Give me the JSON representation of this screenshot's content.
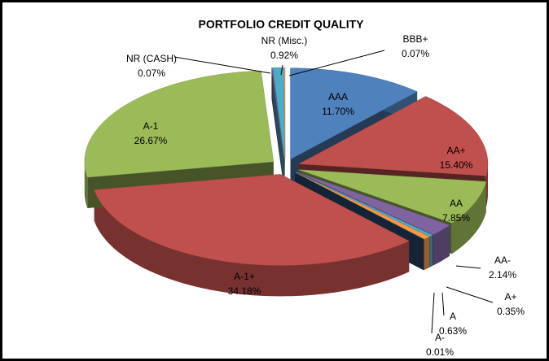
{
  "chart_data": {
    "type": "pie3d",
    "title": "PORTFOLIO CREDIT QUALITY",
    "categories": [
      "AAA",
      "AA+",
      "AA",
      "AA-",
      "A+",
      "A",
      "A-",
      "A-1+",
      "A-1",
      "NR (CASH)",
      "NR (Misc.)",
      "BBB+"
    ],
    "values": [
      11.7,
      15.4,
      7.85,
      2.14,
      0.35,
      0.63,
      0.01,
      34.18,
      26.67,
      0.07,
      0.92,
      0.07
    ],
    "value_labels": [
      "11.70%",
      "15.40%",
      "7.85%",
      "2.14%",
      "0.35%",
      "0.63%",
      "0.01%",
      "34.18%",
      "26.67%",
      "0.07%",
      "0.92%",
      "0.07%"
    ],
    "colors": [
      "#4f81bd",
      "#c0504d",
      "#9bbb59",
      "#8064a2",
      "#4bacc6",
      "#f79646",
      "#2c4d75",
      "#c0504d",
      "#9bbb59",
      "#8064a2",
      "#4bacc6",
      "#f79646"
    ]
  }
}
